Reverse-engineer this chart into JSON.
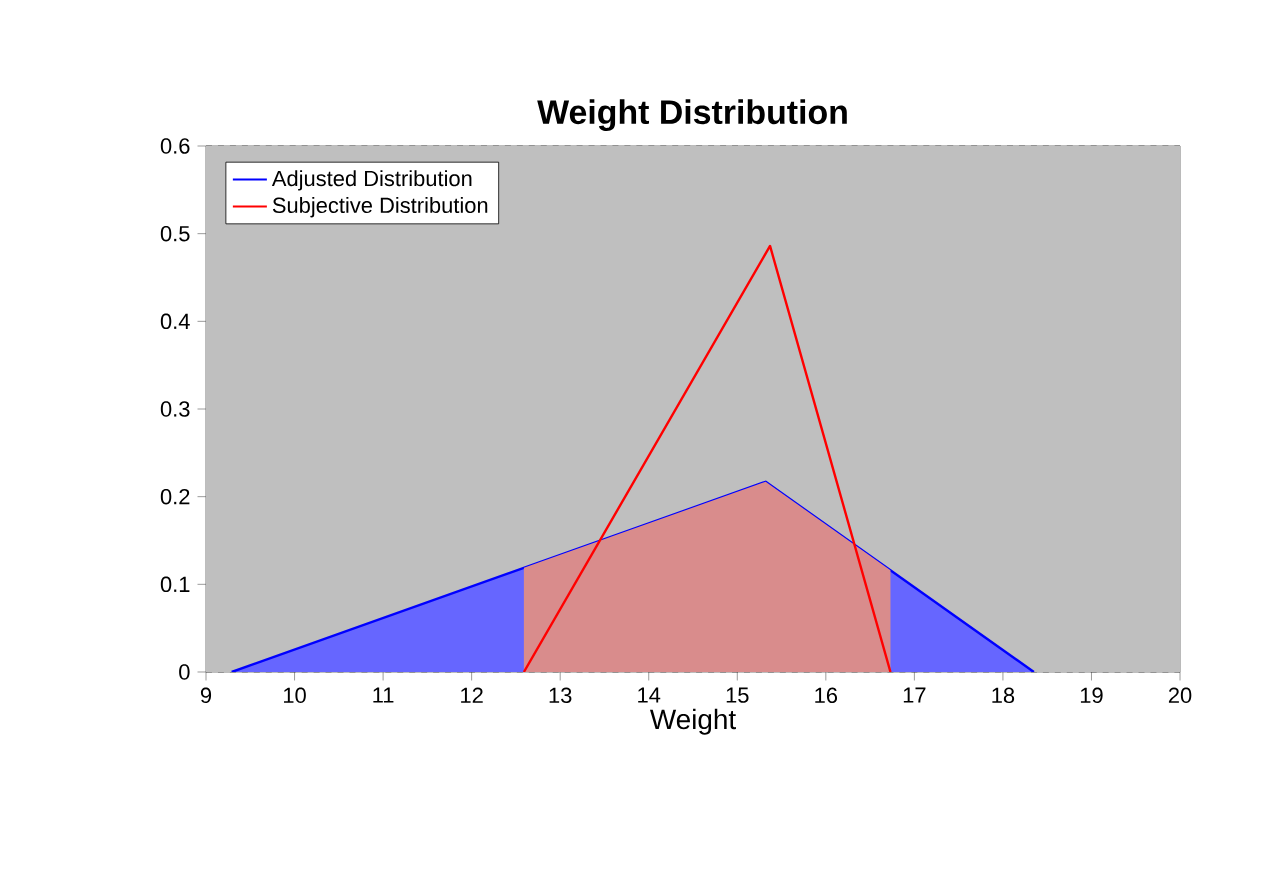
{
  "chart_data": {
    "type": "line",
    "title": "Weight Distribution",
    "xlabel": "Weight",
    "xlim": [
      9,
      20
    ],
    "xticks": [
      9,
      10,
      11,
      12,
      13,
      14,
      15,
      16,
      17,
      18,
      19,
      20
    ],
    "ylim": [
      0,
      0.6
    ],
    "yticks": [
      0,
      0.1,
      0.2,
      0.3,
      0.4,
      0.5,
      0.6
    ],
    "grid": "y",
    "legend": "top left",
    "marker": "none",
    "line_style": "solid",
    "series": [
      {
        "type": "area",
        "name": "Adjusted Distribution",
        "color": "#0000ff",
        "x": [
          9.29,
          15.32,
          18.35
        ],
        "values": [
          0,
          0.217,
          0
        ]
      },
      {
        "type": "area",
        "color": "#d98c8c",
        "x": [
          12.59,
          12.59,
          15.32,
          16.73,
          16.73
        ],
        "values": [
          0,
          0.119,
          0.217,
          0.116,
          0
        ]
      },
      {
        "name": "Subjective Distribution",
        "color": "#ff0000",
        "x": [
          12.59,
          15.37,
          16.73
        ],
        "values": [
          0,
          0.486,
          0
        ]
      }
    ]
  }
}
